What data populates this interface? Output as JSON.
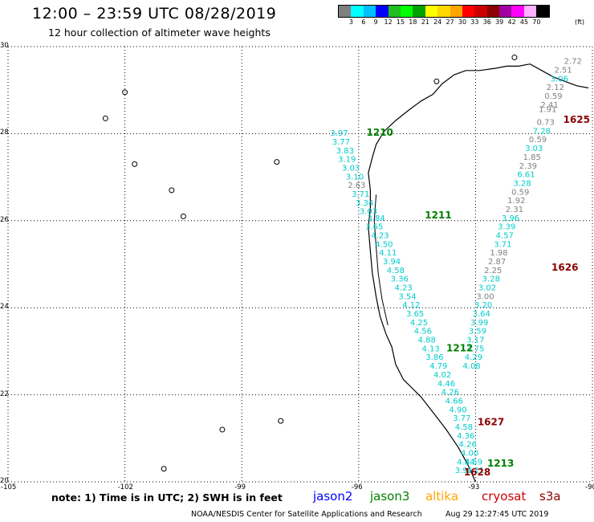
{
  "header": {
    "title": "12:00 – 23:59 UTC 08/28/2019",
    "subtitle": "12 hour collection of altimeter wave heights"
  },
  "colorbar": {
    "colors": [
      "#7f7f7f",
      "#00ffff",
      "#00bfff",
      "#0000ff",
      "#1fbf1f",
      "#00ff00",
      "#00a000",
      "#ffff00",
      "#ffd700",
      "#ffa500",
      "#ff0000",
      "#cc0000",
      "#8b0000",
      "#a000a0",
      "#ff00ff",
      "#ffb0ff",
      "#000000"
    ],
    "labels": [
      "3",
      "6",
      "9",
      "12",
      "15",
      "18",
      "21",
      "24",
      "27",
      "30",
      "33",
      "36",
      "39",
      "42",
      "45",
      "70"
    ],
    "unit": "(ft)"
  },
  "map": {
    "lon_min": -105,
    "lon_max": -90,
    "lat_min": 20,
    "lat_max": 30,
    "lon_ticks": [
      "-105",
      "-102",
      "-99",
      "-96",
      "-93",
      "-90"
    ],
    "lat_ticks": [
      "30",
      "28",
      "26",
      "24",
      "22",
      "20"
    ]
  },
  "colors": {
    "jason2": "#0000ff",
    "jason3": "#008000",
    "altika": "#ffa500",
    "cryosat": "#cc0000",
    "s3a": "#8b0000",
    "swh_low": "#808080",
    "swh_mid": "#00cccc",
    "swh_high": "#00ffff",
    "coast": "#000000"
  },
  "passes": [
    {
      "label": "1210",
      "satellite": "jason3",
      "lon": -95.8,
      "lat": 27.95
    },
    {
      "label": "1211",
      "satellite": "jason3",
      "lon": -94.3,
      "lat": 26.05
    },
    {
      "label": "1212",
      "satellite": "jason3",
      "lon": -93.75,
      "lat": 23.0
    },
    {
      "label": "1213",
      "satellite": "jason3",
      "lon": -92.7,
      "lat": 20.35
    },
    {
      "label": "1625",
      "satellite": "s3a",
      "lon": -90.75,
      "lat": 28.25
    },
    {
      "label": "1626",
      "satellite": "s3a",
      "lon": -91.05,
      "lat": 24.85
    },
    {
      "label": "1627",
      "satellite": "s3a",
      "lon": -92.95,
      "lat": 21.3
    },
    {
      "label": "1628",
      "satellite": "s3a",
      "lon": -93.3,
      "lat": 20.15
    }
  ],
  "track_descending": [
    {
      "v": "3.97",
      "lon": -96.5,
      "lat": 27.95,
      "c": "mid"
    },
    {
      "v": "3.77",
      "lon": -96.45,
      "lat": 27.75,
      "c": "mid"
    },
    {
      "v": "3.83",
      "lon": -96.35,
      "lat": 27.55,
      "c": "mid"
    },
    {
      "v": "3.19",
      "lon": -96.3,
      "lat": 27.35,
      "c": "mid"
    },
    {
      "v": "3.03",
      "lon": -96.2,
      "lat": 27.15,
      "c": "mid"
    },
    {
      "v": "3.10",
      "lon": -96.1,
      "lat": 26.95,
      "c": "mid"
    },
    {
      "v": "2.63",
      "lon": -96.05,
      "lat": 26.75,
      "c": "low"
    },
    {
      "v": "3.71",
      "lon": -95.95,
      "lat": 26.55,
      "c": "mid"
    },
    {
      "v": "3.34",
      "lon": -95.85,
      "lat": 26.35,
      "c": "mid"
    },
    {
      "v": "3.03",
      "lon": -95.75,
      "lat": 26.15,
      "c": "mid"
    },
    {
      "v": "3.84",
      "lon": -95.55,
      "lat": 26.0,
      "c": "mid"
    },
    {
      "v": "3.65",
      "lon": -95.6,
      "lat": 25.8,
      "c": "mid"
    },
    {
      "v": "4.23",
      "lon": -95.45,
      "lat": 25.6,
      "c": "mid"
    },
    {
      "v": "4.50",
      "lon": -95.35,
      "lat": 25.4,
      "c": "mid"
    },
    {
      "v": "4.11",
      "lon": -95.25,
      "lat": 25.2,
      "c": "mid"
    },
    {
      "v": "3.94",
      "lon": -95.15,
      "lat": 25.0,
      "c": "mid"
    },
    {
      "v": "4.58",
      "lon": -95.05,
      "lat": 24.8,
      "c": "mid"
    },
    {
      "v": "3.36",
      "lon": -94.95,
      "lat": 24.6,
      "c": "mid"
    },
    {
      "v": "4.23",
      "lon": -94.85,
      "lat": 24.4,
      "c": "mid"
    },
    {
      "v": "3.54",
      "lon": -94.75,
      "lat": 24.2,
      "c": "mid"
    },
    {
      "v": "4.12",
      "lon": -94.65,
      "lat": 24.0,
      "c": "mid"
    },
    {
      "v": "3.65",
      "lon": -94.55,
      "lat": 23.8,
      "c": "mid"
    },
    {
      "v": "4.25",
      "lon": -94.45,
      "lat": 23.6,
      "c": "mid"
    },
    {
      "v": "4.56",
      "lon": -94.35,
      "lat": 23.4,
      "c": "mid"
    },
    {
      "v": "4.88",
      "lon": -94.25,
      "lat": 23.2,
      "c": "mid"
    },
    {
      "v": "4.13",
      "lon": -94.15,
      "lat": 23.0,
      "c": "mid"
    },
    {
      "v": "3.86",
      "lon": -94.05,
      "lat": 22.8,
      "c": "mid"
    },
    {
      "v": "4.79",
      "lon": -93.95,
      "lat": 22.6,
      "c": "mid"
    },
    {
      "v": "4.02",
      "lon": -93.85,
      "lat": 22.4,
      "c": "mid"
    },
    {
      "v": "4.46",
      "lon": -93.75,
      "lat": 22.2,
      "c": "mid"
    },
    {
      "v": "4.26",
      "lon": -93.65,
      "lat": 22.0,
      "c": "mid"
    },
    {
      "v": "4.66",
      "lon": -93.55,
      "lat": 21.8,
      "c": "mid"
    },
    {
      "v": "4.90",
      "lon": -93.45,
      "lat": 21.6,
      "c": "mid"
    },
    {
      "v": "3.77",
      "lon": -93.35,
      "lat": 21.4,
      "c": "mid"
    },
    {
      "v": "4.58",
      "lon": -93.3,
      "lat": 21.2,
      "c": "mid"
    },
    {
      "v": "4.36",
      "lon": -93.25,
      "lat": 21.0,
      "c": "mid"
    },
    {
      "v": "4.26",
      "lon": -93.2,
      "lat": 20.8,
      "c": "mid"
    },
    {
      "v": "4.00",
      "lon": -93.15,
      "lat": 20.6,
      "c": "mid"
    },
    {
      "v": "4.34",
      "lon": -93.25,
      "lat": 20.4,
      "c": "mid"
    },
    {
      "v": "3.91",
      "lon": -93.3,
      "lat": 20.2,
      "c": "mid"
    }
  ],
  "track_ascending": [
    {
      "v": "2.72",
      "lon": -90.5,
      "lat": 29.6,
      "c": "low"
    },
    {
      "v": "2.51",
      "lon": -90.75,
      "lat": 29.4,
      "c": "low"
    },
    {
      "v": "3.06",
      "lon": -90.85,
      "lat": 29.2,
      "c": "mid"
    },
    {
      "v": "2.12",
      "lon": -90.95,
      "lat": 29.0,
      "c": "low"
    },
    {
      "v": "0.59",
      "lon": -91.0,
      "lat": 28.8,
      "c": "low"
    },
    {
      "v": "2.41",
      "lon": -91.1,
      "lat": 28.6,
      "c": "low"
    },
    {
      "v": "1.91",
      "lon": -91.15,
      "lat": 28.5,
      "c": "low"
    },
    {
      "v": "0.73",
      "lon": -91.2,
      "lat": 28.2,
      "c": "low"
    },
    {
      "v": "7.28",
      "lon": -91.3,
      "lat": 28.0,
      "c": "mid"
    },
    {
      "v": "0.59",
      "lon": -91.4,
      "lat": 27.8,
      "c": "low"
    },
    {
      "v": "3.03",
      "lon": -91.5,
      "lat": 27.6,
      "c": "mid"
    },
    {
      "v": "1.85",
      "lon": -91.55,
      "lat": 27.4,
      "c": "low"
    },
    {
      "v": "2.39",
      "lon": -91.65,
      "lat": 27.2,
      "c": "low"
    },
    {
      "v": "6.61",
      "lon": -91.7,
      "lat": 27.0,
      "c": "mid"
    },
    {
      "v": "3.28",
      "lon": -91.8,
      "lat": 26.8,
      "c": "mid"
    },
    {
      "v": "0.59",
      "lon": -91.85,
      "lat": 26.6,
      "c": "low"
    },
    {
      "v": "1.92",
      "lon": -91.95,
      "lat": 26.4,
      "c": "low"
    },
    {
      "v": "2.31",
      "lon": -92.0,
      "lat": 26.2,
      "c": "low"
    },
    {
      "v": "3.96",
      "lon": -92.1,
      "lat": 26.0,
      "c": "mid"
    },
    {
      "v": "3.39",
      "lon": -92.2,
      "lat": 25.8,
      "c": "mid"
    },
    {
      "v": "4.57",
      "lon": -92.25,
      "lat": 25.6,
      "c": "mid"
    },
    {
      "v": "3.71",
      "lon": -92.3,
      "lat": 25.4,
      "c": "mid"
    },
    {
      "v": "1.98",
      "lon": -92.4,
      "lat": 25.2,
      "c": "low"
    },
    {
      "v": "2.87",
      "lon": -92.45,
      "lat": 25.0,
      "c": "low"
    },
    {
      "v": "2.25",
      "lon": -92.55,
      "lat": 24.8,
      "c": "low"
    },
    {
      "v": "3.28",
      "lon": -92.6,
      "lat": 24.6,
      "c": "mid"
    },
    {
      "v": "3.02",
      "lon": -92.7,
      "lat": 24.4,
      "c": "mid"
    },
    {
      "v": "3.00",
      "lon": -92.75,
      "lat": 24.2,
      "c": "low"
    },
    {
      "v": "3.20",
      "lon": -92.8,
      "lat": 24.0,
      "c": "mid"
    },
    {
      "v": "3.64",
      "lon": -92.85,
      "lat": 23.8,
      "c": "mid"
    },
    {
      "v": "3.99",
      "lon": -92.9,
      "lat": 23.6,
      "c": "mid"
    },
    {
      "v": "3.59",
      "lon": -92.95,
      "lat": 23.4,
      "c": "mid"
    },
    {
      "v": "3.17",
      "lon": -93.0,
      "lat": 23.2,
      "c": "mid"
    },
    {
      "v": "3.75",
      "lon": -93.0,
      "lat": 23.0,
      "c": "mid"
    },
    {
      "v": "4.29",
      "lon": -93.05,
      "lat": 22.8,
      "c": "mid"
    },
    {
      "v": "4.08",
      "lon": -93.1,
      "lat": 22.6,
      "c": "mid"
    },
    {
      "v": "4.59",
      "lon": -93.05,
      "lat": 20.4,
      "c": "mid"
    },
    {
      "v": "4.11",
      "lon": -93.0,
      "lat": 20.2,
      "c": "mid"
    }
  ],
  "footer": {
    "note": "note:  1) Time is in UTC;  2) SWH is in feet",
    "satellites": [
      {
        "key": "jason2",
        "label": "jason2"
      },
      {
        "key": "jason3",
        "label": "jason3"
      },
      {
        "key": "altika",
        "label": "altika"
      },
      {
        "key": "cryosat",
        "label": "cryosat"
      },
      {
        "key": "s3a",
        "label": "s3a"
      }
    ],
    "credit": "NOAA/NESDIS Center for Satellite Applications and Research",
    "timestamp": "Aug 29 12:27:45 UTC 2019"
  }
}
